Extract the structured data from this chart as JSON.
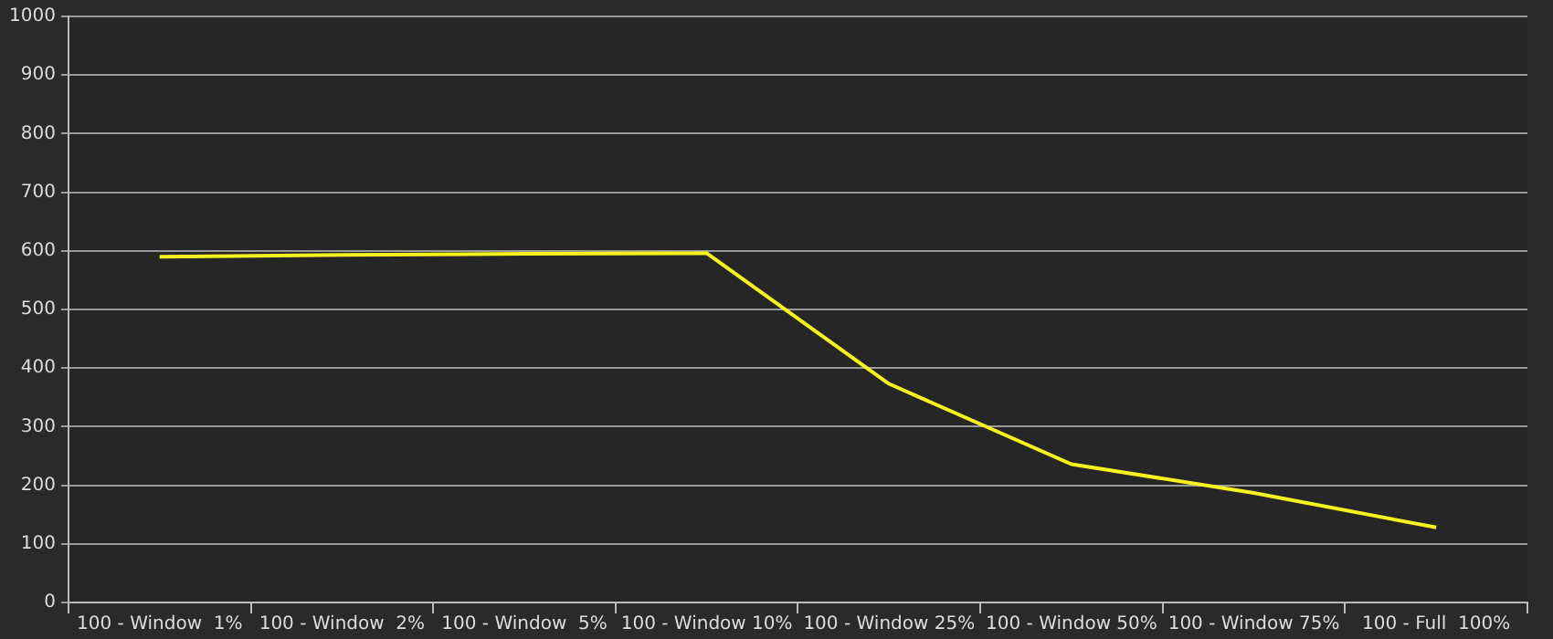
{
  "chart_data": {
    "type": "line",
    "categories": [
      "100 - Window  1%",
      "100 - Window  2%",
      "100 - Window  5%",
      "100 - Window 10%",
      "100 - Window 25%",
      "100 - Window 50%",
      "100 - Window 75%",
      "100 - Full  100%"
    ],
    "series": [
      {
        "color": "#f5f21e",
        "values": [
          590,
          593,
          595,
          596,
          373,
          236,
          187,
          128
        ]
      }
    ],
    "ylim": [
      0,
      1000
    ],
    "yticks": [
      0,
      100,
      200,
      300,
      400,
      500,
      600,
      700,
      800,
      900,
      1000
    ],
    "grid": "y",
    "legend": false,
    "marker": "none",
    "line_style": "solid"
  }
}
